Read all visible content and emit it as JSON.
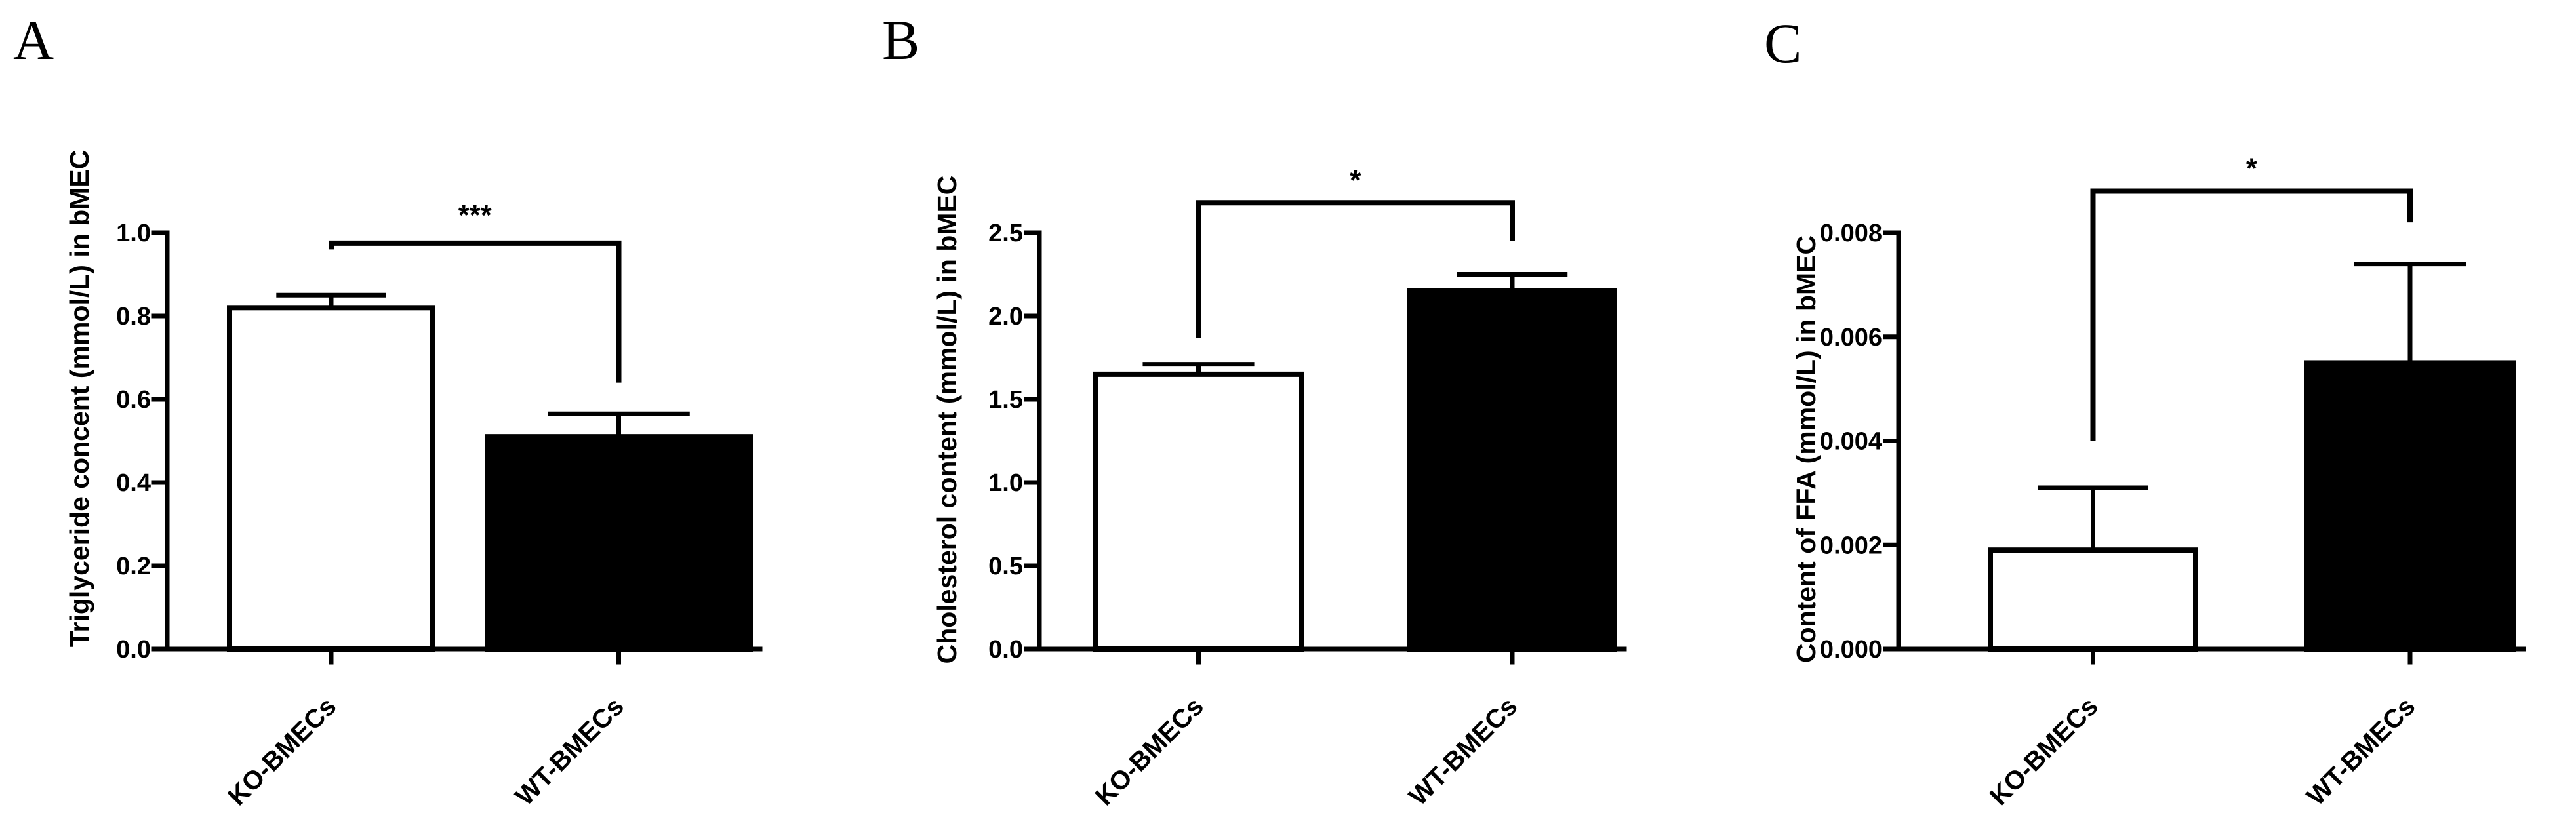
{
  "chart_data": [
    {
      "type": "bar",
      "panel": "A",
      "ylabel": "Triglyceride concent (mmol/L) in bMEC",
      "categories": [
        "KO-BMECs",
        "WT-BMECs"
      ],
      "values": [
        0.82,
        0.51
      ],
      "errors": [
        0.03,
        0.055
      ],
      "bar_colors": [
        "#ffffff",
        "#000000"
      ],
      "ylim": [
        0,
        1.0
      ],
      "yticks": [
        0.0,
        0.2,
        0.4,
        0.6,
        0.8,
        1.0
      ],
      "ytick_labels": [
        "0.0",
        "0.2",
        "0.4",
        "0.6",
        "0.8",
        "1.0"
      ],
      "significance": "***",
      "bracket": {
        "level": 0.975,
        "left_end": 0.96,
        "right_end": 0.64
      }
    },
    {
      "type": "bar",
      "panel": "B",
      "ylabel": "Cholesterol content (mmol/L) in bMEC",
      "categories": [
        "KO-BMECs",
        "WT-BMECs"
      ],
      "values": [
        1.65,
        2.15
      ],
      "errors": [
        0.06,
        0.1
      ],
      "bar_colors": [
        "#ffffff",
        "#000000"
      ],
      "ylim": [
        0,
        2.5
      ],
      "yticks": [
        0.0,
        0.5,
        1.0,
        1.5,
        2.0,
        2.5
      ],
      "ytick_labels": [
        "0.0",
        "0.5",
        "1.0",
        "1.5",
        "2.0",
        "2.5"
      ],
      "significance": "*",
      "bracket": {
        "level": 2.68,
        "left_end": 1.87,
        "right_end": 2.45
      }
    },
    {
      "type": "bar",
      "panel": "C",
      "ylabel": "Content of FFA (mmol/L) in bMEC",
      "categories": [
        "KO-BMECs",
        "WT-BMECs"
      ],
      "values": [
        0.0019,
        0.0055
      ],
      "errors": [
        0.0012,
        0.0019
      ],
      "bar_colors": [
        "#ffffff",
        "#000000"
      ],
      "ylim": [
        0,
        0.008
      ],
      "yticks": [
        0.0,
        0.002,
        0.004,
        0.006,
        0.008
      ],
      "ytick_labels": [
        "0.000",
        "0.002",
        "0.004",
        "0.006",
        "0.008"
      ],
      "significance": "*",
      "bracket": {
        "level": 0.0088,
        "left_end": 0.004,
        "right_end": 0.0082
      }
    }
  ]
}
